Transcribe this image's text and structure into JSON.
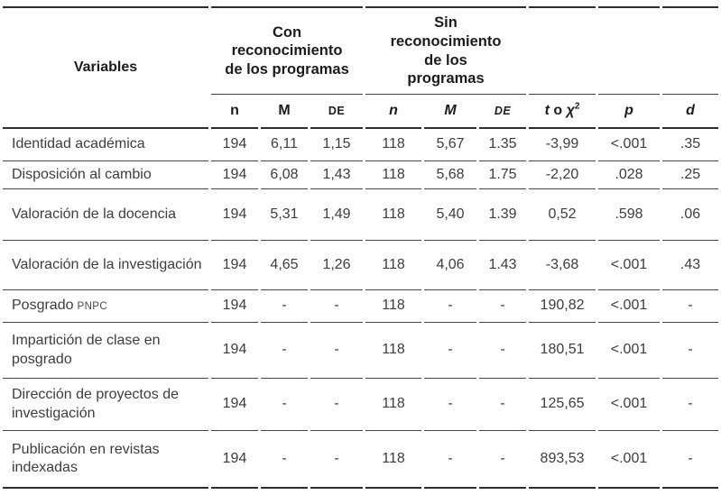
{
  "colors": {
    "text": "#3d3d3d",
    "header_text": "#1c1c1c",
    "rule": "#3e3e3e"
  },
  "table": {
    "header": {
      "variables_label": "Variables",
      "group1_label": "Con\nreconocimiento\nde los programas",
      "group2_label": "Sin\nreconocimiento\nde los\nprogramas",
      "sub1": [
        "n",
        "M",
        "DE"
      ],
      "sub2": [
        "n",
        "M",
        "DE"
      ],
      "stat_t": "t",
      "stat_o": " o ",
      "stat_chi": "χ",
      "stat_sup": "2",
      "p_label": "p",
      "d_label": "d"
    },
    "rows": [
      {
        "variable": "Identidad académica",
        "suffix": "",
        "n1": "194",
        "m1": "6,11",
        "de1": "1,15",
        "n2": "118",
        "m2": "5,67",
        "de2": "1.35",
        "t": "-3,99",
        "p": "<.001",
        "d": ".35"
      },
      {
        "variable": "Disposición al cambio",
        "suffix": "",
        "n1": "194",
        "m1": "6,08",
        "de1": "1,43",
        "n2": "118",
        "m2": "5,68",
        "de2": "1.75",
        "t": "-2,20",
        "p": ".028",
        "d": ".25"
      },
      {
        "variable": "Valoración de la docencia",
        "suffix": "",
        "n1": "194",
        "m1": "5,31",
        "de1": "1,49",
        "n2": "118",
        "m2": "5,40",
        "de2": "1.39",
        "t": "0,52",
        "p": ".598",
        "d": ".06"
      },
      {
        "variable": "Valoración de la investigación",
        "suffix": "",
        "n1": "194",
        "m1": "4,65",
        "de1": "1,26",
        "n2": "118",
        "m2": "4,06",
        "de2": "1.43",
        "t": "-3,68",
        "p": "<.001",
        "d": ".43"
      },
      {
        "variable": "Posgrado",
        "suffix": "PNPC",
        "n1": "194",
        "m1": "-",
        "de1": "-",
        "n2": "118",
        "m2": "-",
        "de2": "-",
        "t": "190,82",
        "p": "<.001",
        "d": "-"
      },
      {
        "variable": "Impartición de clase en posgrado",
        "suffix": "",
        "n1": "194",
        "m1": "-",
        "de1": "-",
        "n2": "118",
        "m2": "-",
        "de2": "-",
        "t": "180,51",
        "p": "<.001",
        "d": "-"
      },
      {
        "variable": "Dirección de proyectos de investigación",
        "suffix": "",
        "n1": "194",
        "m1": "-",
        "de1": "-",
        "n2": "118",
        "m2": "-",
        "de2": "-",
        "t": "125,65",
        "p": "<.001",
        "d": "-"
      },
      {
        "variable": "Publicación en revistas indexadas",
        "suffix": "",
        "n1": "194",
        "m1": "-",
        "de1": "-",
        "n2": "118",
        "m2": "-",
        "de2": "-",
        "t": "893,53",
        "p": "<.001",
        "d": "-"
      }
    ]
  }
}
